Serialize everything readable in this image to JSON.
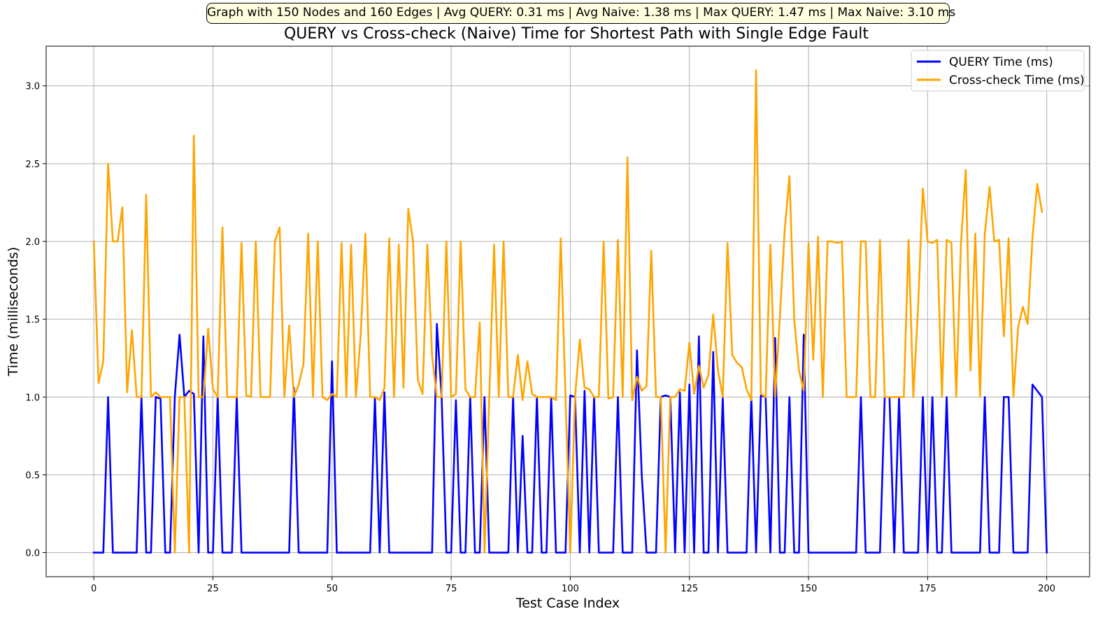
{
  "summary": "Graph with 150 Nodes and 160 Edges | Avg QUERY: 0.31 ms | Avg Naive: 1.38 ms | Max QUERY: 1.47 ms | Max Naive: 3.10 ms",
  "colors": {
    "query": "#0000ff",
    "naive": "#ffa500",
    "grid": "#b0b0b0",
    "summary_bg": "#ffffe0"
  },
  "chart_data": {
    "type": "line",
    "title": "QUERY vs Cross-check (Naive) Time for Shortest Path with Single Edge Fault",
    "xlabel": "Test Case Index",
    "ylabel": "Time (milliseconds)",
    "xlim": [
      -10,
      209
    ],
    "ylim": [
      -0.155,
      3.255
    ],
    "xticks": [
      0,
      25,
      50,
      75,
      100,
      125,
      150,
      175,
      200
    ],
    "yticks": [
      0.0,
      0.5,
      1.0,
      1.5,
      2.0,
      2.5,
      3.0
    ],
    "ytick_labels": [
      "0.0",
      "0.5",
      "1.0",
      "1.5",
      "2.0",
      "2.5",
      "3.0"
    ],
    "grid": true,
    "legend_position": "top-right",
    "x": "0..199",
    "series": [
      {
        "name": "QUERY Time (ms)",
        "color": "#0000ff",
        "values": [
          0,
          0,
          0,
          1.0,
          0,
          0,
          0,
          0,
          0,
          0,
          1.0,
          0,
          0,
          1.0,
          0.99,
          0,
          0,
          1.0,
          1.4,
          1.0,
          1.04,
          1.02,
          0,
          1.39,
          0,
          0,
          1.0,
          0,
          0,
          0,
          1.0,
          0,
          0,
          0,
          0,
          0,
          0,
          0,
          0,
          0,
          0,
          0,
          1.06,
          0,
          0,
          0,
          0,
          0,
          0,
          0,
          1.23,
          0,
          0,
          0,
          0,
          0,
          0,
          0,
          0,
          1.0,
          0,
          1.03,
          0,
          0,
          0,
          0,
          0,
          0,
          0,
          0,
          0,
          0,
          1.47,
          1.0,
          0,
          0,
          0.98,
          0,
          0,
          1.0,
          0,
          0,
          1.0,
          0,
          0,
          0,
          0,
          0,
          1.0,
          0,
          0.75,
          0,
          0,
          1.0,
          0,
          0,
          1.0,
          0,
          0,
          0,
          1.01,
          1.0,
          0,
          1.04,
          0,
          1.0,
          0,
          0,
          0,
          0,
          1.0,
          0,
          0,
          0,
          1.3,
          0.5,
          0,
          0,
          0,
          1.0,
          1.01,
          1.0,
          0,
          1.03,
          0,
          1.08,
          0,
          1.39,
          0,
          0,
          1.29,
          0,
          1.0,
          0,
          0,
          0,
          0,
          0,
          1.0,
          0,
          1.01,
          1.0,
          0,
          1.38,
          0,
          0,
          1.0,
          0,
          0,
          1.4,
          0,
          0,
          0,
          0,
          0,
          0,
          0,
          0,
          0,
          0,
          0,
          1.0,
          0,
          0,
          0,
          0,
          1.0,
          1.0,
          0,
          1.0,
          0,
          0,
          0,
          0,
          1.0,
          0,
          1.0,
          0,
          0,
          1.0,
          0,
          0,
          0,
          0,
          0,
          0,
          0,
          1.0,
          0,
          0,
          0,
          1.0,
          1.0,
          0,
          0,
          0,
          0,
          1.08,
          1.04,
          1.0,
          0
        ]
      },
      {
        "name": "Cross-check Time (ms)",
        "color": "#ffa500",
        "values": [
          2.0,
          1.09,
          1.23,
          2.5,
          2.0,
          2.0,
          2.22,
          1.03,
          1.43,
          1.0,
          1.0,
          2.3,
          1.0,
          1.03,
          1.0,
          1.0,
          1.0,
          0,
          1.0,
          1.0,
          0,
          2.68,
          1.0,
          1.0,
          1.44,
          1.05,
          1.0,
          2.09,
          1.0,
          1.0,
          1.0,
          1.99,
          1.01,
          1.0,
          2.0,
          1.0,
          1.0,
          1.0,
          2.0,
          2.09,
          1.0,
          1.46,
          1.0,
          1.08,
          1.21,
          2.05,
          1.0,
          2.0,
          1.0,
          0.98,
          1.02,
          1.0,
          1.99,
          1.0,
          1.98,
          1.0,
          1.39,
          2.05,
          1.0,
          1.0,
          0.98,
          1.06,
          2.02,
          1.0,
          1.98,
          1.06,
          2.21,
          2.0,
          1.11,
          1.02,
          1.98,
          1.26,
          1.0,
          1.0,
          2.0,
          1.0,
          1.02,
          2.0,
          1.05,
          1.0,
          1.0,
          1.48,
          0,
          1.0,
          1.98,
          1.0,
          2.0,
          1.0,
          1.0,
          1.27,
          0.98,
          1.23,
          1.02,
          1.0,
          1.0,
          1.0,
          1.0,
          0.98,
          2.02,
          1.0,
          0,
          1.0,
          1.37,
          1.06,
          1.05,
          1.0,
          1.0,
          2.0,
          0.99,
          1.0,
          2.01,
          1.0,
          2.54,
          0.98,
          1.13,
          1.04,
          1.07,
          1.94,
          1.0,
          1.0,
          0,
          1.0,
          1.0,
          1.05,
          1.04,
          1.35,
          1.02,
          1.2,
          1.06,
          1.14,
          1.53,
          1.17,
          1.0,
          1.99,
          1.27,
          1.22,
          1.19,
          1.05,
          0.98,
          3.1,
          1.02,
          1.0,
          1.98,
          1.0,
          1.52,
          2.07,
          2.42,
          1.5,
          1.17,
          1.04,
          1.99,
          1.24,
          2.03,
          1.0,
          2.0,
          2.0,
          1.99,
          2.0,
          1.0,
          1.0,
          1.0,
          2.0,
          2.0,
          1.0,
          1.0,
          2.01,
          1.0,
          1.0,
          1.0,
          1.0,
          1.0,
          2.01,
          1.0,
          1.58,
          2.34,
          2.0,
          1.99,
          2.01,
          1.0,
          2.01,
          1.99,
          1.0,
          1.99,
          2.46,
          1.17,
          2.05,
          1.0,
          2.05,
          2.35,
          2.0,
          2.01,
          1.39,
          2.02,
          1.0,
          1.45,
          1.58,
          1.47,
          2.02,
          2.37,
          2.19
        ]
      }
    ]
  }
}
